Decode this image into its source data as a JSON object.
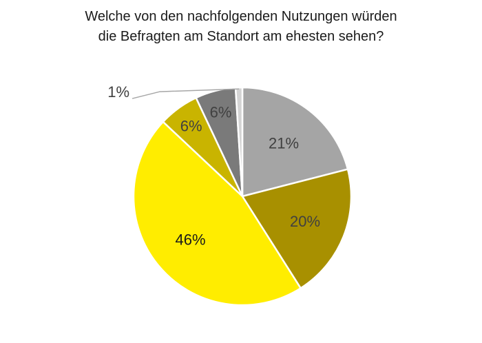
{
  "chart_data": {
    "type": "pie",
    "title_lines": [
      "Welche von den nachfolgenden Nutzungen würden",
      "die Befragten am Standort am ehesten sehen?"
    ],
    "slices": [
      {
        "value": 21,
        "label": "21%",
        "color": "#a5a5a5"
      },
      {
        "value": 20,
        "label": "20%",
        "color": "#a89000"
      },
      {
        "value": 46,
        "label": "46%",
        "color": "#ffed00"
      },
      {
        "value": 6,
        "label": "6%",
        "color": "#c9b400"
      },
      {
        "value": 6,
        "label": "6%",
        "color": "#7a7a7a"
      },
      {
        "value": 1,
        "label": "1%",
        "color": "#d4d4d4"
      }
    ],
    "start_angle_deg": 0,
    "direction": "clockwise",
    "legend": "none"
  }
}
